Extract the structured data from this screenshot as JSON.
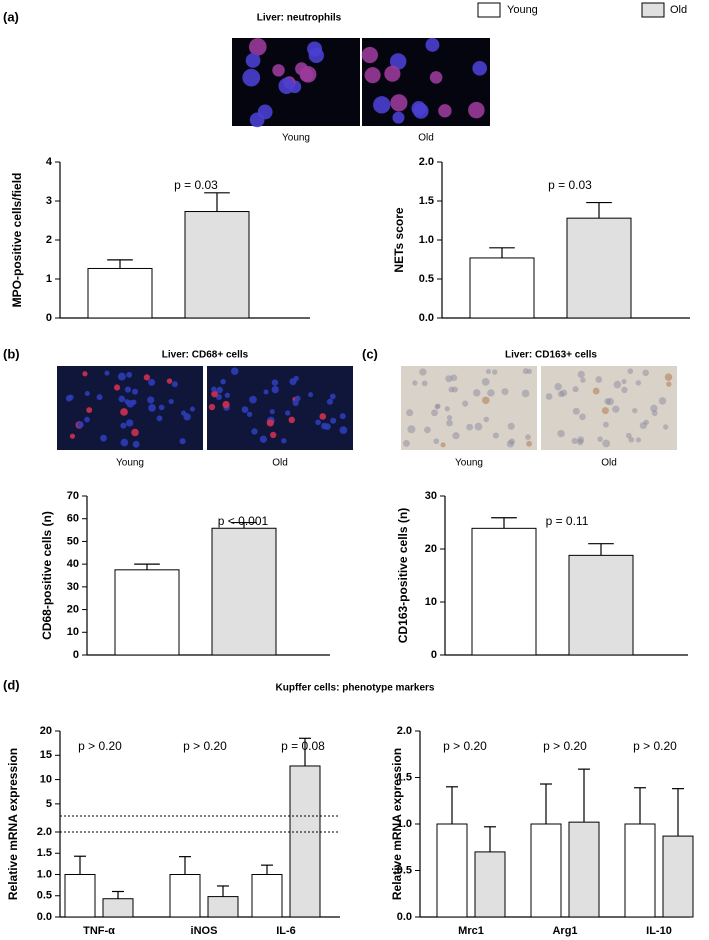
{
  "legend": [
    {
      "name": "Young",
      "color": "#ffffff"
    },
    {
      "name": "Old",
      "color": "#e0e0e0"
    }
  ],
  "panels": [
    {
      "label": "(a)",
      "title": "Liver: neutrophils",
      "images": [
        "Young",
        "Old"
      ]
    },
    {
      "label": "(b)",
      "title": "Liver: CD68+ cells",
      "images": [
        "Young",
        "Old"
      ]
    },
    {
      "label": "(c)",
      "title": "Liver: CD163+ cells",
      "images": [
        "Young",
        "Old"
      ]
    },
    {
      "label": "(d)",
      "title": "Kupffer cells: phenotype markers",
      "images": []
    }
  ],
  "chart_data": [
    {
      "type": "bar",
      "ylabel": "MPO-positive cells/field",
      "categories": [
        null
      ],
      "series": [
        {
          "color": "#ffffff",
          "values": [
            1.27
          ],
          "errors": [
            0.22
          ]
        },
        {
          "color": "#e0e0e0",
          "values": [
            2.73
          ],
          "errors": [
            0.48
          ]
        }
      ],
      "ylim": [
        0,
        4
      ],
      "yticks": [
        0,
        1,
        2,
        3,
        4
      ],
      "annotations": [
        "p = 0.03"
      ]
    },
    {
      "type": "bar",
      "ylabel": "NETs score",
      "categories": [
        null
      ],
      "series": [
        {
          "color": "#ffffff",
          "values": [
            0.77
          ],
          "errors": [
            0.13
          ]
        },
        {
          "color": "#e0e0e0",
          "values": [
            1.28
          ],
          "errors": [
            0.2
          ]
        }
      ],
      "ylim": [
        0,
        2.0
      ],
      "yticks": [
        {
          "value": 0,
          "label": "0.0"
        },
        {
          "value": 0.5,
          "label": "0.5"
        },
        {
          "value": 1,
          "label": "1.0"
        },
        {
          "value": 1.5,
          "label": "1.5"
        },
        {
          "value": 2,
          "label": "2.0"
        }
      ],
      "annotations": [
        "p = 0.03"
      ]
    },
    {
      "type": "bar",
      "ylabel": "CD68-positive cells (n)",
      "categories": [
        null
      ],
      "series": [
        {
          "color": "#ffffff",
          "values": [
            37.5
          ],
          "errors": [
            2.5
          ]
        },
        {
          "color": "#e0e0e0",
          "values": [
            55.8
          ],
          "errors": [
            2.5
          ]
        }
      ],
      "ylim": [
        0,
        70
      ],
      "yticks": [
        0,
        10,
        20,
        30,
        40,
        50,
        60,
        70
      ],
      "annotations": [
        "p < 0.001"
      ]
    },
    {
      "type": "bar",
      "ylabel": "CD163-positive cells (n)",
      "categories": [
        null
      ],
      "series": [
        {
          "color": "#ffffff",
          "values": [
            23.9
          ],
          "errors": [
            2.0
          ]
        },
        {
          "color": "#e0e0e0",
          "values": [
            18.8
          ],
          "errors": [
            2.2
          ]
        }
      ],
      "ylim": [
        0,
        30
      ],
      "yticks": [
        0,
        10,
        20,
        30
      ],
      "annotations": [
        "p = 0.11"
      ]
    },
    {
      "type": "bar",
      "ylabel": "Relative mRNA expression",
      "categories": [
        "TNF-α",
        "iNOS",
        "IL-6"
      ],
      "series": [
        {
          "color": "#ffffff",
          "values": [
            1.0,
            1.0,
            1.0
          ],
          "errors": [
            0.43,
            0.42,
            0.22
          ]
        },
        {
          "color": "#e0e0e0",
          "values": [
            0.43,
            0.48,
            12.8
          ],
          "errors": [
            0.17,
            0.25,
            5.7
          ]
        }
      ],
      "ylim": [
        0,
        2.0
      ],
      "yticks": [
        {
          "value": 0,
          "label": "0.0"
        },
        {
          "value": 0.5,
          "label": "0.5"
        },
        {
          "value": 1,
          "label": "1.0"
        },
        {
          "value": 1.5,
          "label": "1.5"
        },
        {
          "value": 2,
          "label": "2.0"
        }
      ],
      "axis_break": true,
      "ylim_upper": [
        2.5,
        20
      ],
      "yticks_upper": [
        5,
        10,
        15,
        20
      ],
      "annotations": [
        "p > 0.20",
        "p > 0.20",
        "p = 0.08"
      ]
    },
    {
      "type": "bar",
      "ylabel": "Relative mRNA expression",
      "categories": [
        "Mrc1",
        "Arg1",
        "IL-10"
      ],
      "series": [
        {
          "color": "#ffffff",
          "values": [
            1.0,
            1.0,
            1.0
          ],
          "errors": [
            0.4,
            0.43,
            0.39
          ]
        },
        {
          "color": "#e0e0e0",
          "values": [
            0.7,
            1.02,
            0.87
          ],
          "errors": [
            0.27,
            0.57,
            0.51
          ]
        }
      ],
      "ylim": [
        0,
        2.0
      ],
      "yticks": [
        {
          "value": 0,
          "label": "0.0"
        },
        {
          "value": 0.5,
          "label": "0.5"
        },
        {
          "value": 1,
          "label": "1.0"
        },
        {
          "value": 1.5,
          "label": "1.5"
        },
        {
          "value": 2,
          "label": "2.0"
        }
      ],
      "annotations": [
        "p > 0.20",
        "p > 0.20",
        "p > 0.20"
      ]
    }
  ]
}
